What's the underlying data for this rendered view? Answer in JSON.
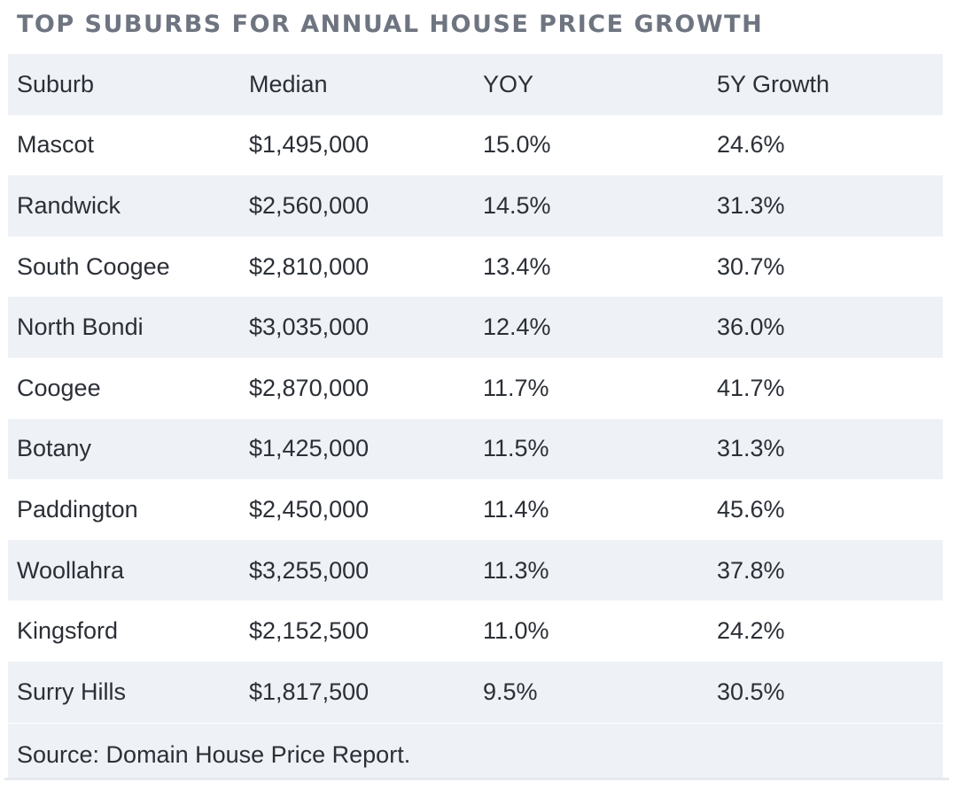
{
  "chart_data": {
    "type": "table",
    "title": "TOP SUBURBS FOR ANNUAL HOUSE PRICE GROWTH",
    "columns": [
      "Suburb",
      "Median",
      "YOY",
      "5Y Growth"
    ],
    "rows": [
      [
        "Mascot",
        "$1,495,000",
        "15.0%",
        "24.6%"
      ],
      [
        "Randwick",
        "$2,560,000",
        "14.5%",
        "31.3%"
      ],
      [
        "South Coogee",
        "$2,810,000",
        "13.4%",
        "30.7%"
      ],
      [
        "North Bondi",
        "$3,035,000",
        "12.4%",
        "36.0%"
      ],
      [
        "Coogee",
        "$2,870,000",
        "11.7%",
        "41.7%"
      ],
      [
        "Botany",
        "$1,425,000",
        "11.5%",
        "31.3%"
      ],
      [
        "Paddington",
        "$2,450,000",
        "11.4%",
        "45.6%"
      ],
      [
        "Woollahra",
        "$3,255,000",
        "11.3%",
        "37.8%"
      ],
      [
        "Kingsford",
        "$2,152,500",
        "11.0%",
        "24.2%"
      ],
      [
        "Surry Hills",
        "$1,817,500",
        "9.5%",
        "30.5%"
      ]
    ],
    "source": "Source: Domain House Price Report."
  },
  "colors": {
    "title": "#6e7580",
    "text": "#2b2f36",
    "shaded_row": "#eef1f6",
    "plain_row": "#ffffff"
  }
}
